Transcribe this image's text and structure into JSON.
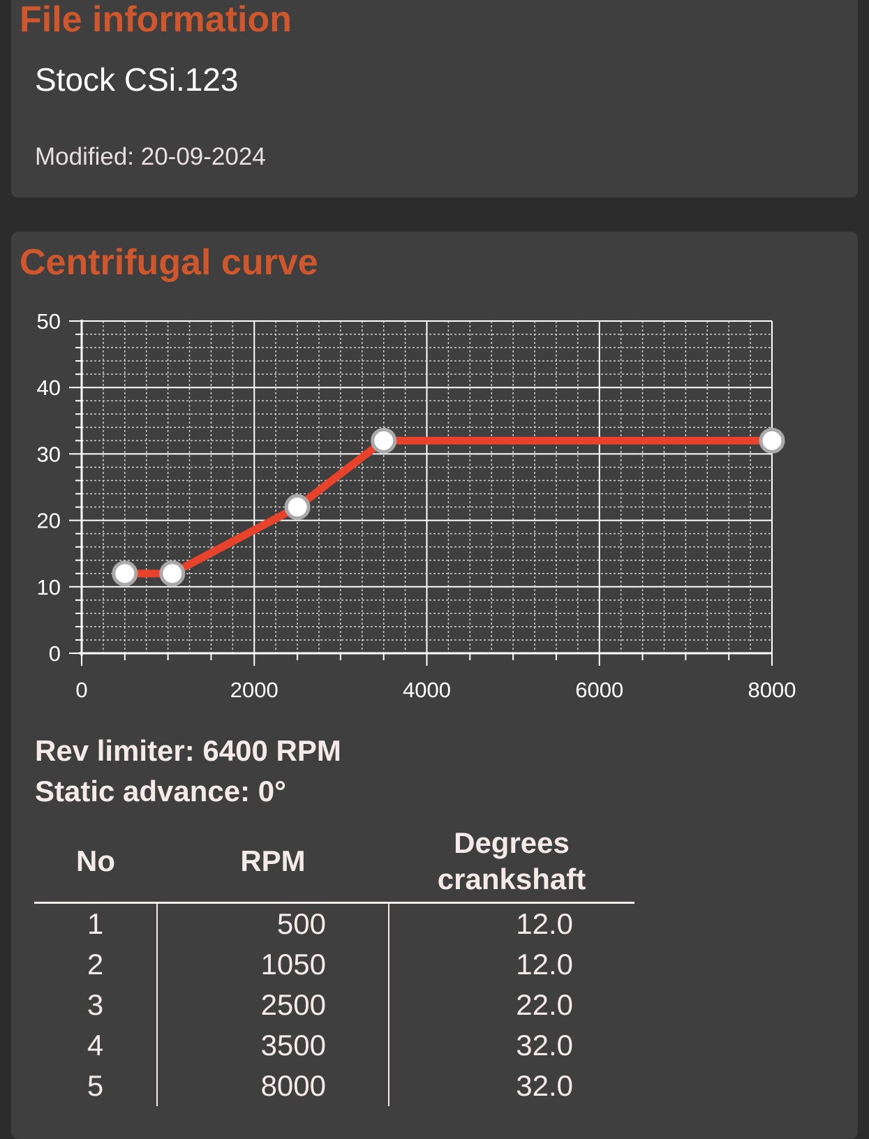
{
  "file_info": {
    "title": "File information",
    "file_name": "Stock CSi.123",
    "modified": "Modified: 20-09-2024"
  },
  "curve": {
    "title": "Centrifugal curve",
    "rev_limiter": "Rev limiter: 6400 RPM",
    "static_advance": "Static advance: 0°"
  },
  "table": {
    "headers": [
      "No",
      "RPM",
      "Degrees crankshaft"
    ],
    "rows": [
      [
        "1",
        "500",
        "12.0"
      ],
      [
        "2",
        "1050",
        "12.0"
      ],
      [
        "3",
        "2500",
        "22.0"
      ],
      [
        "4",
        "3500",
        "32.0"
      ],
      [
        "5",
        "8000",
        "32.0"
      ]
    ]
  },
  "colors": {
    "accent": "#d0562c",
    "line": "#e8432a",
    "card": "#3f3f3f",
    "background": "#2c2c2c"
  },
  "chart_data": {
    "type": "line",
    "x": [
      500,
      1050,
      2500,
      3500,
      8000
    ],
    "series": [
      {
        "values": [
          12,
          12,
          22,
          32,
          32
        ]
      }
    ],
    "xlim": [
      0,
      8000
    ],
    "ylim": [
      0,
      50
    ],
    "xticks": [
      0,
      2000,
      4000,
      6000,
      8000
    ],
    "yticks": [
      0,
      10,
      20,
      30,
      40,
      50
    ],
    "title": "",
    "xlabel": "",
    "ylabel": "",
    "grid": true,
    "legend": "none"
  }
}
